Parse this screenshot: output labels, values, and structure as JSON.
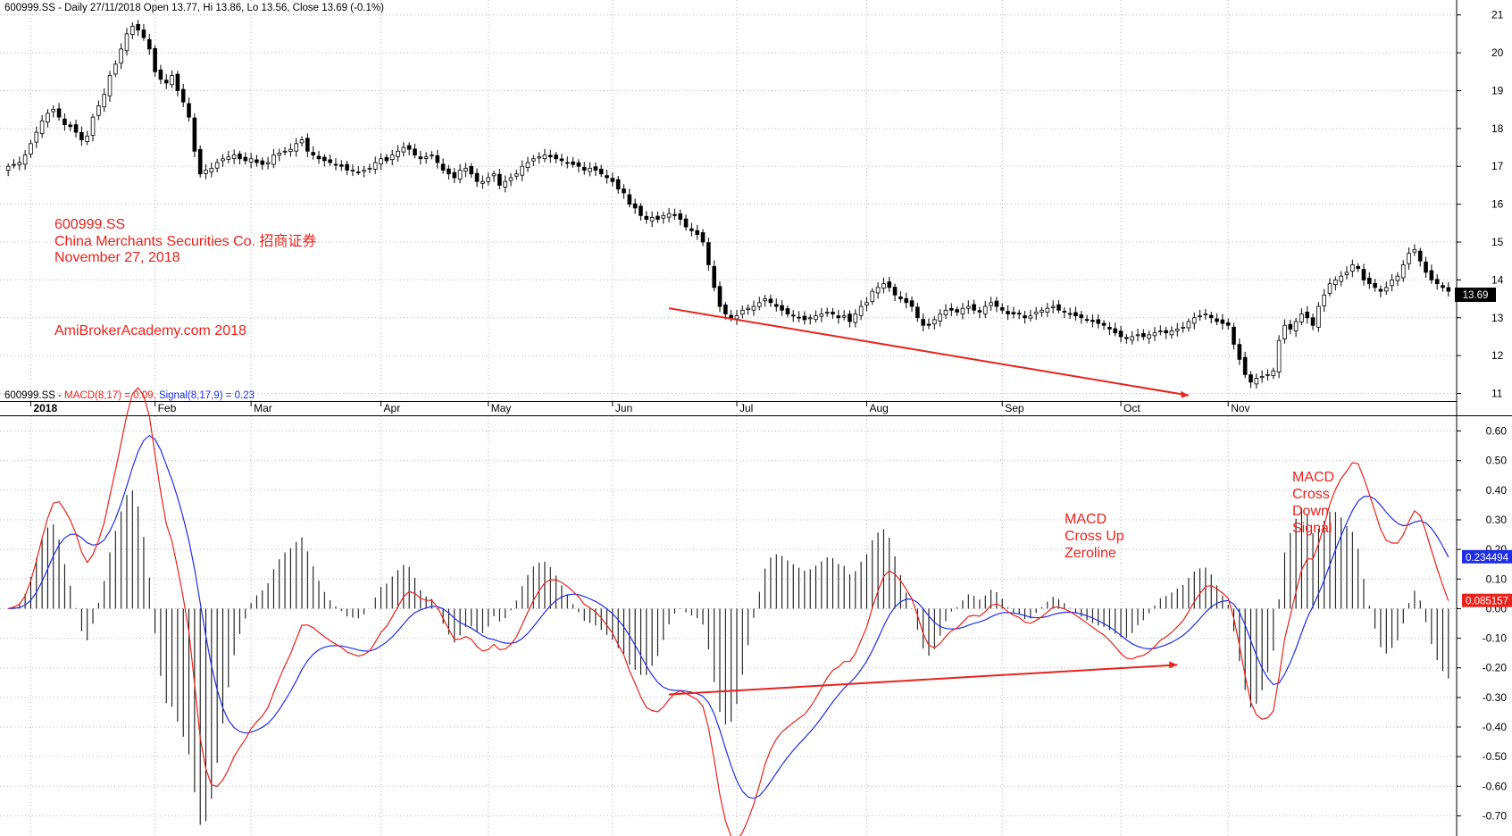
{
  "chart_data": [
    {
      "type": "candlestick",
      "header": "600999.SS - Daily 27/11/2018 Open 13.77, Hi 13.86, Lo 13.56, Close 13.69 (-0.1%)",
      "ylim": [
        10.8,
        21.3
      ],
      "y_ticks": [
        "11",
        "12",
        "13",
        "14",
        "15",
        "16",
        "17",
        "18",
        "19",
        "20",
        "21"
      ],
      "x_ticks": [
        "2018",
        "Feb",
        "Mar",
        "Apr",
        "May",
        "Jun",
        "Jul",
        "Aug",
        "Sep",
        "Oct",
        "Nov"
      ],
      "last_close_label": "13.69",
      "grid": true,
      "annotations": {
        "symbol": "600999.SS",
        "company": "China Merchants Securities Co.  招商证券",
        "date": "November 27, 2018",
        "watermark": "AmiBrokerAcademy.com  2018"
      },
      "closes": [
        17.0,
        17.05,
        17.1,
        17.3,
        17.6,
        17.9,
        18.2,
        18.4,
        18.5,
        18.3,
        18.1,
        18.05,
        17.9,
        17.7,
        17.8,
        18.3,
        18.6,
        18.9,
        19.4,
        19.7,
        20.1,
        20.5,
        20.7,
        20.6,
        20.4,
        20.1,
        19.5,
        19.3,
        19.2,
        19.4,
        19.0,
        18.7,
        18.3,
        17.4,
        16.8,
        16.9,
        16.95,
        17.1,
        17.2,
        17.25,
        17.3,
        17.2,
        17.15,
        17.2,
        17.1,
        17.05,
        17.1,
        17.3,
        17.35,
        17.4,
        17.45,
        17.6,
        17.7,
        17.4,
        17.3,
        17.2,
        17.15,
        17.1,
        17.05,
        17.0,
        16.9,
        16.9,
        16.85,
        16.9,
        16.95,
        17.1,
        17.2,
        17.15,
        17.3,
        17.4,
        17.5,
        17.45,
        17.3,
        17.2,
        17.25,
        17.3,
        17.1,
        16.9,
        16.8,
        16.7,
        16.9,
        16.95,
        16.8,
        16.6,
        16.6,
        16.7,
        16.8,
        16.5,
        16.6,
        16.7,
        16.8,
        17.0,
        17.1,
        17.2,
        17.25,
        17.3,
        17.25,
        17.2,
        17.15,
        17.1,
        17.05,
        17.0,
        16.9,
        16.95,
        16.9,
        16.8,
        16.7,
        16.6,
        16.4,
        16.3,
        16.0,
        15.9,
        15.7,
        15.6,
        15.65,
        15.6,
        15.7,
        15.75,
        15.7,
        15.6,
        15.4,
        15.3,
        15.2,
        15.0,
        14.4,
        13.8,
        13.3,
        13.1,
        13.0,
        13.05,
        13.2,
        13.25,
        13.3,
        13.4,
        13.5,
        13.4,
        13.3,
        13.2,
        13.1,
        13.05,
        13.0,
        12.95,
        13.0,
        13.05,
        13.1,
        13.15,
        13.1,
        13.0,
        13.05,
        12.9,
        13.1,
        13.3,
        13.4,
        13.7,
        13.8,
        13.9,
        13.8,
        13.6,
        13.5,
        13.4,
        13.3,
        13.0,
        12.8,
        12.8,
        12.95,
        13.1,
        13.2,
        13.2,
        13.15,
        13.25,
        13.3,
        13.2,
        13.15,
        13.3,
        13.4,
        13.3,
        13.2,
        13.1,
        13.1,
        13.1,
        13.0,
        13.05,
        13.15,
        13.2,
        13.25,
        13.3,
        13.2,
        13.15,
        13.1,
        13.05,
        13.0,
        12.95,
        12.9,
        12.85,
        12.8,
        12.7,
        12.6,
        12.5,
        12.45,
        12.5,
        12.55,
        12.5,
        12.55,
        12.6,
        12.65,
        12.6,
        12.65,
        12.7,
        12.75,
        12.9,
        13.0,
        13.05,
        13.1,
        13.0,
        12.9,
        12.85,
        12.8,
        12.3,
        11.9,
        11.5,
        11.3,
        11.4,
        11.45,
        11.5,
        11.6,
        12.4,
        12.8,
        12.7,
        12.9,
        13.1,
        13.0,
        12.8,
        13.3,
        13.6,
        13.9,
        14.0,
        14.1,
        14.2,
        14.4,
        14.3,
        14.0,
        13.9,
        13.8,
        13.7,
        13.8,
        14.0,
        14.1,
        14.4,
        14.7,
        14.8,
        14.5,
        14.2,
        14.0,
        13.9,
        13.8,
        13.7
      ],
      "markers": [
        {
          "label": "2018",
          "index": 4
        },
        {
          "label": "Feb",
          "index": 26
        },
        {
          "label": "Mar",
          "index": 43
        },
        {
          "label": "Apr",
          "index": 66
        },
        {
          "label": "May",
          "index": 85
        },
        {
          "label": "Jun",
          "index": 107
        },
        {
          "label": "Jul",
          "index": 129
        },
        {
          "label": "Aug",
          "index": 152
        },
        {
          "label": "Sep",
          "index": 176
        },
        {
          "label": "Oct",
          "index": 197
        },
        {
          "label": "Nov",
          "index": 216
        }
      ],
      "trendline": {
        "from": {
          "index": 117,
          "value": 13.25
        },
        "to": {
          "index": 209,
          "value": 10.95
        }
      }
    },
    {
      "type": "macd",
      "header_symbol": "600999.SS - ",
      "macd_label": "MACD(8,17) = 0.09,",
      "signal_label": "Signal(8,17,9) = 0.23",
      "ylim": [
        -0.75,
        0.65
      ],
      "y_ticks": [
        "0.60",
        "0.50",
        "0.40",
        "0.30",
        "0.20",
        "0.10",
        "0.00",
        "-0.10",
        "-0.20",
        "-0.30",
        "-0.40",
        "-0.50",
        "-0.60",
        "-0.70"
      ],
      "macd_value_label": "0.085157",
      "signal_value_label": "0.234494",
      "series_colors": {
        "macd": "#e8231d",
        "signal": "#1f2ee6",
        "histogram": "#000000"
      },
      "annotations": {
        "cross_up": [
          "MACD",
          "Cross Up",
          "Zeroline"
        ],
        "cross_down": [
          "MACD",
          "Cross",
          "Down",
          "Signal"
        ]
      },
      "trendline": {
        "from": {
          "index": 117,
          "value": -0.29
        },
        "to": {
          "index": 207,
          "value": -0.19
        }
      }
    }
  ]
}
